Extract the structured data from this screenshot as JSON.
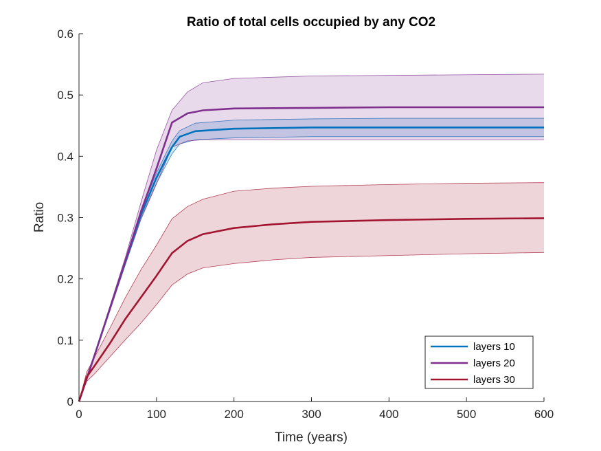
{
  "chart_data": {
    "type": "line",
    "title": "Ratio of total cells occupied by any CO2",
    "xlabel": "Time (years)",
    "ylabel": "Ratio",
    "xlim": [
      0,
      600
    ],
    "ylim": [
      0,
      0.6
    ],
    "xticks": [
      "0",
      "100",
      "200",
      "300",
      "400",
      "500",
      "600"
    ],
    "yticks": [
      "0",
      "0.1",
      "0.2",
      "0.3",
      "0.4",
      "0.5",
      "0.6"
    ],
    "grid": false,
    "legend_position": "bottom-right",
    "series": [
      {
        "name": "layers 10",
        "color": "#0072BD",
        "x": [
          0,
          20,
          40,
          60,
          80,
          100,
          120,
          130,
          150,
          200,
          300,
          400,
          500,
          600
        ],
        "mean": [
          0,
          0.075,
          0.152,
          0.228,
          0.305,
          0.365,
          0.415,
          0.432,
          0.441,
          0.445,
          0.447,
          0.447,
          0.447,
          0.447
        ],
        "upper": [
          0,
          0.077,
          0.155,
          0.232,
          0.31,
          0.373,
          0.425,
          0.442,
          0.454,
          0.459,
          0.461,
          0.462,
          0.462,
          0.462
        ],
        "lower": [
          0,
          0.073,
          0.149,
          0.224,
          0.3,
          0.356,
          0.404,
          0.42,
          0.427,
          0.43,
          0.432,
          0.432,
          0.432,
          0.432
        ]
      },
      {
        "name": "layers 20",
        "color": "#7E2F8E",
        "x": [
          0,
          20,
          40,
          60,
          80,
          100,
          120,
          140,
          160,
          200,
          300,
          400,
          500,
          600
        ],
        "mean": [
          0,
          0.075,
          0.152,
          0.23,
          0.31,
          0.38,
          0.455,
          0.47,
          0.475,
          0.478,
          0.479,
          0.48,
          0.48,
          0.48
        ],
        "upper": [
          0,
          0.077,
          0.156,
          0.236,
          0.325,
          0.41,
          0.475,
          0.505,
          0.52,
          0.527,
          0.531,
          0.532,
          0.533,
          0.534
        ],
        "lower": [
          0,
          0.073,
          0.148,
          0.224,
          0.297,
          0.355,
          0.415,
          0.425,
          0.427,
          0.427,
          0.427,
          0.427,
          0.427,
          0.427
        ]
      },
      {
        "name": "layers 30",
        "color": "#A2142F",
        "x": [
          0,
          10,
          20,
          40,
          60,
          80,
          100,
          120,
          140,
          160,
          200,
          250,
          300,
          400,
          500,
          600
        ],
        "mean": [
          0,
          0.04,
          0.058,
          0.095,
          0.135,
          0.17,
          0.205,
          0.242,
          0.262,
          0.273,
          0.283,
          0.289,
          0.293,
          0.296,
          0.298,
          0.299
        ],
        "upper": [
          0,
          0.048,
          0.072,
          0.12,
          0.17,
          0.215,
          0.255,
          0.298,
          0.318,
          0.33,
          0.343,
          0.348,
          0.351,
          0.354,
          0.356,
          0.357
        ],
        "lower": [
          0,
          0.033,
          0.045,
          0.073,
          0.101,
          0.128,
          0.158,
          0.19,
          0.208,
          0.218,
          0.225,
          0.231,
          0.235,
          0.238,
          0.241,
          0.243
        ]
      }
    ]
  }
}
